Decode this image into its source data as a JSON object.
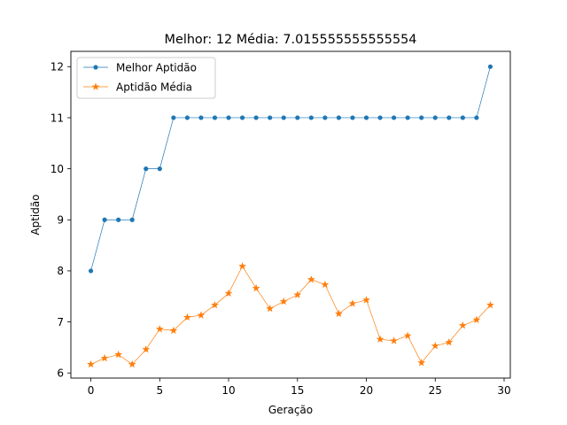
{
  "chart_data": {
    "type": "line",
    "title": "Melhor: 12 Média: 7.015555555555554",
    "xlabel": "Geração",
    "ylabel": "Aptidão",
    "xlim": [
      -1.45,
      30.45
    ],
    "ylim": [
      5.9,
      12.3
    ],
    "xticks": [
      0,
      5,
      10,
      15,
      20,
      25,
      30
    ],
    "yticks": [
      6,
      7,
      8,
      9,
      10,
      11,
      12
    ],
    "grid": false,
    "legend": "top-left",
    "x": [
      0,
      1,
      2,
      3,
      4,
      5,
      6,
      7,
      8,
      9,
      10,
      11,
      12,
      13,
      14,
      15,
      16,
      17,
      18,
      19,
      20,
      21,
      22,
      23,
      24,
      25,
      26,
      27,
      28,
      29
    ],
    "series": [
      {
        "name": "Melhor Aptidão",
        "color": "#1f77b4",
        "marker": "circle",
        "values": [
          8,
          9,
          9,
          9,
          10,
          10,
          11,
          11,
          11,
          11,
          11,
          11,
          11,
          11,
          11,
          11,
          11,
          11,
          11,
          11,
          11,
          11,
          11,
          11,
          11,
          11,
          11,
          11,
          11,
          12
        ]
      },
      {
        "name": "Aptidão Média",
        "color": "#ff7f0e",
        "marker": "star",
        "values": [
          6.17,
          6.29,
          6.36,
          6.17,
          6.46,
          6.86,
          6.83,
          7.09,
          7.13,
          7.33,
          7.56,
          8.09,
          7.66,
          7.26,
          7.4,
          7.53,
          7.83,
          7.73,
          7.16,
          7.36,
          7.43,
          6.66,
          6.63,
          6.73,
          6.2,
          6.53,
          6.6,
          6.93,
          7.04,
          7.33
        ]
      }
    ]
  }
}
